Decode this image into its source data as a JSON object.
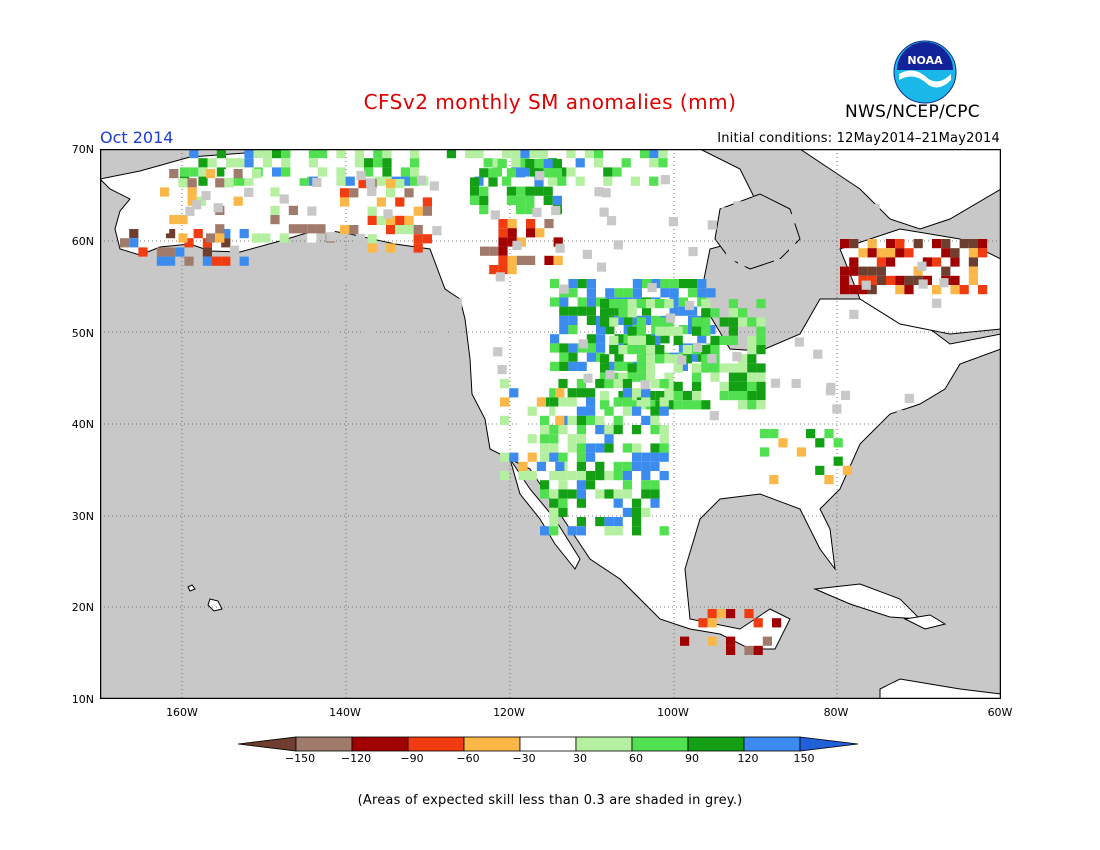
{
  "title": "CFSv2 monthly SM anomalies (mm)",
  "agency": "NWS/NCEP/CPC",
  "logo_text": "NOAA",
  "valid_month": "Oct 2014",
  "initial_conditions": "Initial conditions: 12May2014–21May2014",
  "map": {
    "lon_range": [
      -170,
      -60
    ],
    "lat_range": [
      10,
      70
    ],
    "lat_ticks": [
      "70N",
      "60N",
      "50N",
      "40N",
      "30N",
      "20N",
      "10N"
    ],
    "lon_ticks": [
      "160W",
      "140W",
      "120W",
      "100W",
      "80W",
      "60W"
    ],
    "grid": "dotted",
    "grey_meaning": "expected skill less than 0.3"
  },
  "colorbar": {
    "levels": [
      "−150",
      "−120",
      "−90",
      "−60",
      "−30",
      "30",
      "60",
      "90",
      "120",
      "150"
    ],
    "colors": [
      "#6e3e2e",
      "#a07a6a",
      "#a00000",
      "#f03c10",
      "#fbb848",
      "#ffffff",
      "#b4f0a0",
      "#50e050",
      "#14a014",
      "#3c8cf0",
      "#2060d8"
    ]
  },
  "footnote": "(Areas of expected skill less than 0.3 are shaded in grey.)",
  "colors": {
    "title": "#e00000",
    "month": "#1a3bd6",
    "grey_fill": "#c8c8c8",
    "land_line": "#000000"
  }
}
